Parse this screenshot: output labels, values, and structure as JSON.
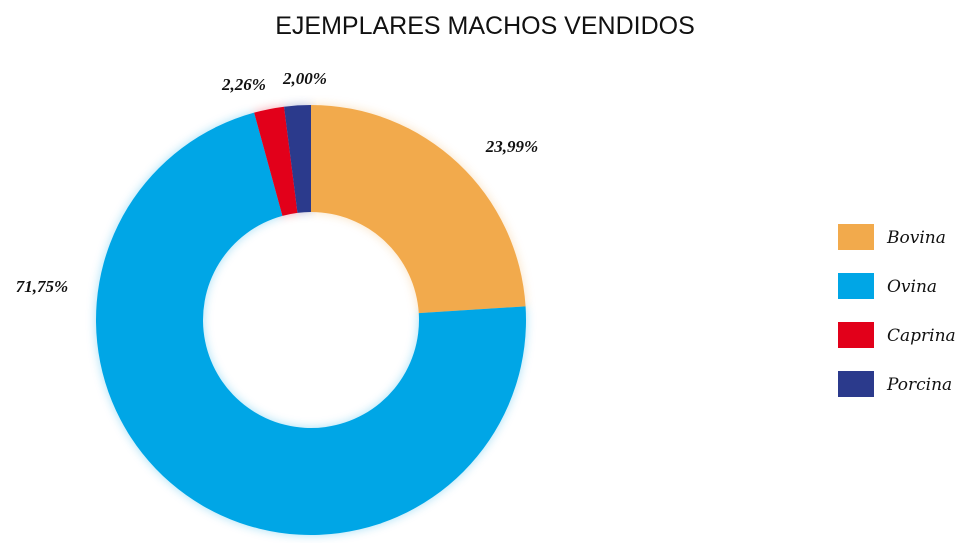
{
  "chart_data": {
    "type": "donut",
    "title": "EJEMPLARES MACHOS VENDIDOS",
    "categories": [
      "Bovina",
      "Ovina",
      "Caprina",
      "Porcina"
    ],
    "values": [
      23.99,
      71.75,
      2.26,
      2.0
    ],
    "value_labels": [
      "23,99%",
      "71,75%",
      "2,26%",
      "2,00%"
    ],
    "colors": [
      "#f2aa4c",
      "#00a6e6",
      "#e2001a",
      "#2b3a8c"
    ],
    "legend": "right"
  }
}
